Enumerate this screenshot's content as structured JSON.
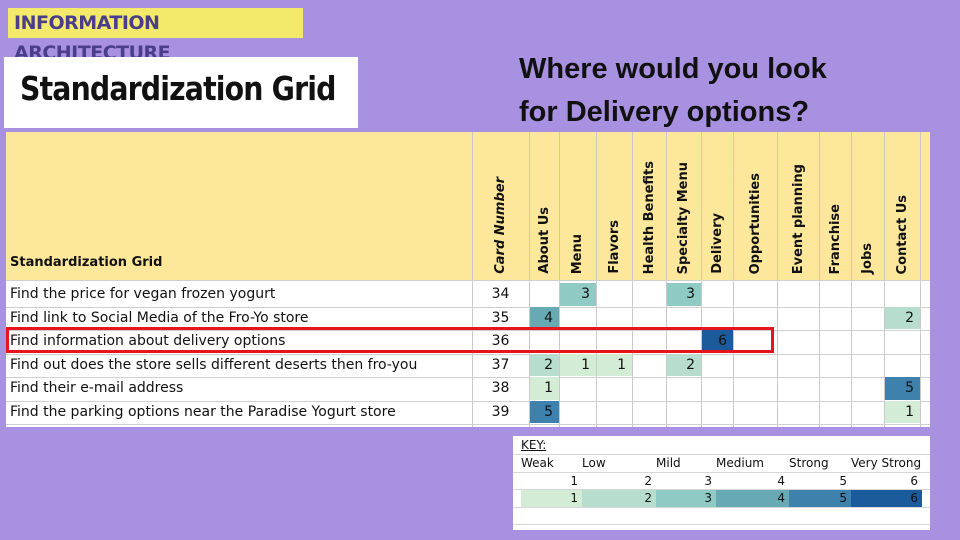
{
  "header_tag": "INFORMATION ARCHITECTURE",
  "title": "Standardization Grid",
  "question": [
    "Where would you look",
    "for Delivery options?"
  ],
  "colors": {
    "level_1": "#d2ecd6",
    "level_2": "#b7ddcf",
    "level_3": "#8fcbc4",
    "level_4": "#67aab4",
    "level_5": "#3e81ad",
    "level_6": "#1b5b9b",
    "header_band": "#fde79a",
    "highlight": "#e8141c"
  },
  "grid": {
    "title": "Standardization Grid",
    "columns": [
      "Card Number",
      "About Us",
      "Menu",
      "Flavors",
      "Health Benefits",
      "Specialty Menu",
      "Delivery",
      "Opportunities",
      "Event planning",
      "Franchise",
      "Jobs",
      "Contact Us"
    ],
    "rows": [
      {
        "label": "Find the price for vegan frozen yogurt",
        "card": "34",
        "values": {
          "Menu": 3,
          "Specialty Menu": 3
        }
      },
      {
        "label": "Find link to Social Media of the Fro-Yo store",
        "card": "35",
        "values": {
          "About Us": 4,
          "Contact Us": 2
        }
      },
      {
        "label": "Find information about delivery options",
        "card": "36",
        "values": {
          "Delivery": 6
        }
      },
      {
        "label": "Find out does the store sells different deserts then fro-you",
        "card": "37",
        "values": {
          "About Us": 2,
          "Menu": 1,
          "Flavors": 1,
          "Specialty Menu": 2
        }
      },
      {
        "label": "Find their e-mail  address",
        "card": "38",
        "values": {
          "About Us": 1,
          "Contact Us": 5
        }
      },
      {
        "label": "Find the parking options near the Paradise Yogurt store",
        "card": "39",
        "values": {
          "About Us": 5,
          "Contact Us": 1
        }
      }
    ]
  },
  "key": {
    "title": "KEY:",
    "labels": [
      "Weak",
      "Low",
      "Mild",
      "Medium",
      "Strong",
      "Very Strong"
    ],
    "numbers": [
      "1",
      "2",
      "3",
      "4",
      "5",
      "6"
    ]
  }
}
